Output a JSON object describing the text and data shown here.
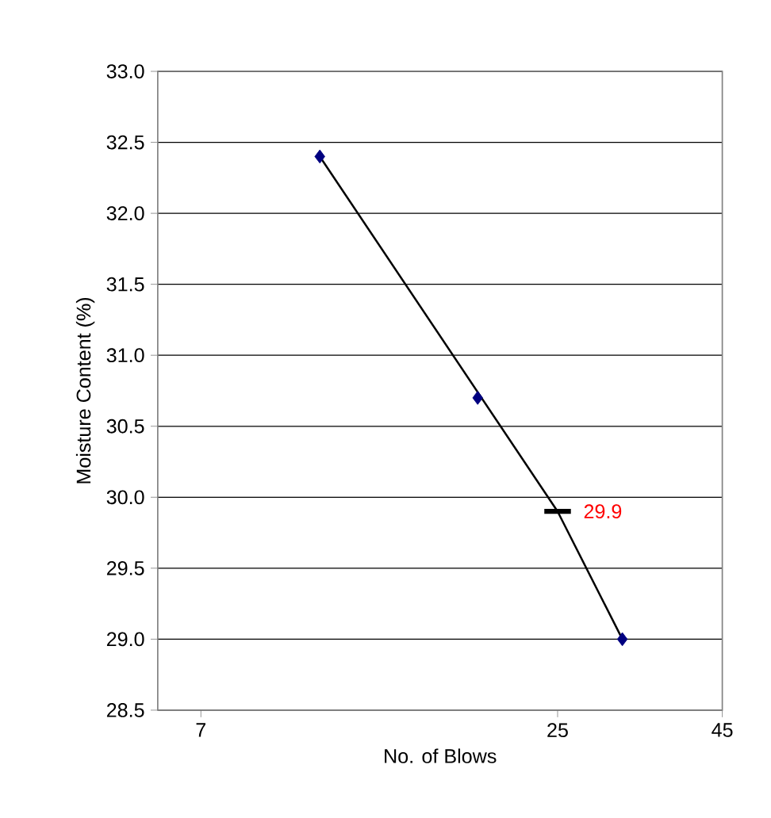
{
  "chart_data": {
    "type": "scatter",
    "xlabel": "No. of Blows",
    "ylabel": "Moisture Content (%)",
    "log": "x",
    "xlim": [
      6,
      45
    ],
    "xticks": [
      7,
      25,
      45
    ],
    "ylim": [
      28.5,
      33.0
    ],
    "yticks": [
      {
        "value": 28.5,
        "label": "28.5"
      },
      {
        "value": 29.0,
        "label": "29.0"
      },
      {
        "value": 29.5,
        "label": "29.5"
      },
      {
        "value": 30.0,
        "label": "30.0"
      },
      {
        "value": 30.5,
        "label": "30.5"
      },
      {
        "value": 31.0,
        "label": "31.0"
      },
      {
        "value": 31.5,
        "label": "31.5"
      },
      {
        "value": 32.0,
        "label": "32.0"
      },
      {
        "value": 32.5,
        "label": "32.5"
      },
      {
        "value": 33.0,
        "label": "33.0"
      }
    ],
    "grid": "y",
    "marker": "diamond",
    "series": [
      {
        "type": "line",
        "color": "#000000",
        "x": [
          10.7,
          25,
          31.5
        ],
        "values": [
          32.4,
          29.9,
          29.0
        ],
        "marker": "none"
      },
      {
        "color": "#000080",
        "x": [
          10.7,
          18.8,
          31.5
        ],
        "values": [
          32.4,
          30.7,
          29.0
        ]
      }
    ],
    "annotations": [
      {
        "text": "29.9",
        "x": 25,
        "y": 29.9
      }
    ]
  }
}
